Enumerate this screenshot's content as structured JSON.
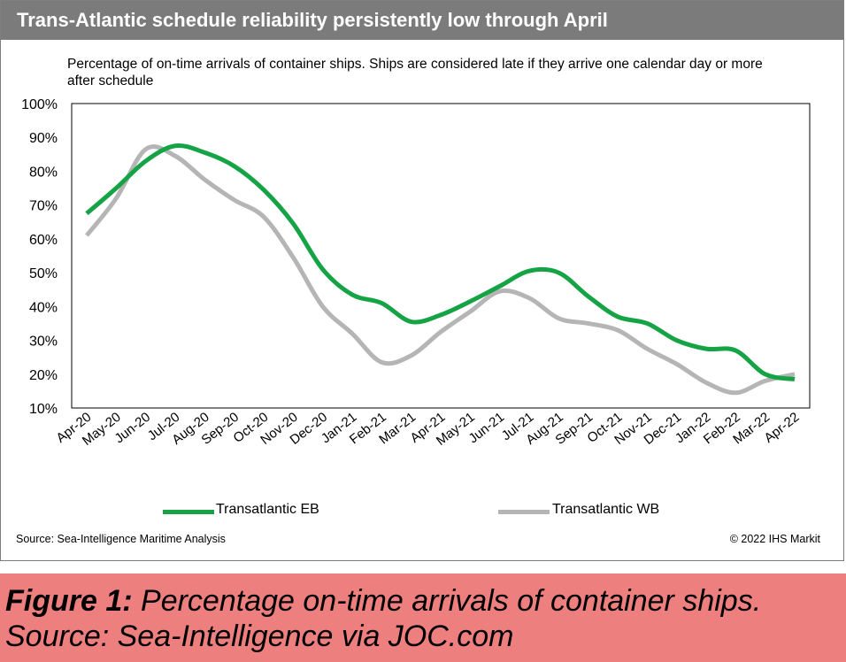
{
  "header": {
    "title": "Trans-Atlantic schedule reliability persistently low through April"
  },
  "subtitle": "Percentage of on-time arrivals of container ships. Ships are considered late if they arrive one calendar day or more after schedule",
  "source_left": "Source: Sea-Intelligence Maritime Analysis",
  "source_right": "© 2022 IHS Markit",
  "caption": {
    "bold": "Figure 1:",
    "line1_rest": " Percentage on-time arrivals of container ships.",
    "line2": "Source: Sea-Intelligence via JOC.com"
  },
  "legend": {
    "eb": "Transatlantic EB",
    "wb": "Transatlantic WB"
  },
  "colors": {
    "eb": "#16a346",
    "wb": "#b5b5b5",
    "header": "#7b7b7b",
    "caption_band": "#ed7f7f"
  },
  "chart_data": {
    "type": "line",
    "title": "Trans-Atlantic schedule reliability persistently low through April",
    "categories": [
      "Apr-20",
      "May-20",
      "Jun-20",
      "Jul-20",
      "Aug-20",
      "Sep-20",
      "Oct-20",
      "Nov-20",
      "Dec-20",
      "Jan-21",
      "Feb-21",
      "Mar-21",
      "Apr-21",
      "May-21",
      "Jun-21",
      "Jul-21",
      "Aug-21",
      "Sep-21",
      "Oct-21",
      "Nov-21",
      "Dec-21",
      "Jan-22",
      "Feb-22",
      "Mar-22",
      "Apr-22"
    ],
    "series": [
      {
        "name": "Transatlantic EB",
        "values": [
          67.5,
          75,
          83,
          87.5,
          85.5,
          81.5,
          74.5,
          64.5,
          51,
          43.5,
          41,
          35.5,
          37.5,
          41.5,
          46,
          50.5,
          50,
          43,
          37,
          35,
          30,
          27.5,
          27,
          20,
          18.5
        ]
      },
      {
        "name": "Transatlantic WB",
        "values": [
          61,
          72,
          86.5,
          84.5,
          77.5,
          71.5,
          66.5,
          54.5,
          40,
          32,
          23.5,
          25.5,
          32.5,
          38.5,
          44.5,
          42.5,
          36.5,
          35,
          33,
          27.5,
          23,
          17.5,
          14.5,
          18,
          20
        ]
      }
    ],
    "ylim": [
      10,
      100
    ],
    "yticks": [
      "10%",
      "20%",
      "30%",
      "40%",
      "50%",
      "60%",
      "70%",
      "80%",
      "90%",
      "100%"
    ],
    "grid": false,
    "legend_position": "bottom"
  }
}
